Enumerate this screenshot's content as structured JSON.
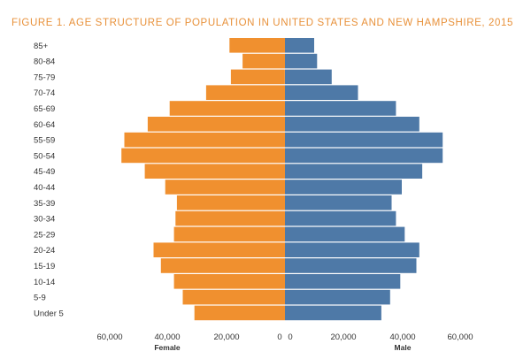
{
  "chart_data": {
    "type": "bar",
    "orientation": "horizontal-pyramid",
    "title": "FIGURE 1. AGE STRUCTURE OF POPULATION IN UNITED STATES AND NEW HAMPSHIRE, 2015",
    "categories": [
      "85+",
      "80-84",
      "75-79",
      "70-74",
      "65-69",
      "60-64",
      "55-59",
      "50-54",
      "45-49",
      "40-44",
      "35-39",
      "30-34",
      "25-29",
      "20-24",
      "15-19",
      "10-14",
      "5-9",
      "Under 5"
    ],
    "series": [
      {
        "name": "Female",
        "color": "#f0902f",
        "values": [
          19000,
          14500,
          18500,
          27000,
          39500,
          47000,
          55000,
          56000,
          48000,
          41000,
          37000,
          37500,
          38000,
          45000,
          42500,
          38000,
          35000,
          31000
        ]
      },
      {
        "name": "Male",
        "color": "#4e79a7",
        "values": [
          10000,
          11000,
          16000,
          25000,
          38000,
          46000,
          54000,
          54000,
          47000,
          40000,
          36500,
          38000,
          41000,
          46000,
          45000,
          39500,
          36000,
          33000
        ]
      }
    ],
    "x_ticks": [
      "60,000",
      "40,000",
      "20,000",
      "0",
      "0",
      "20,000",
      "40,000",
      "60,000"
    ],
    "x_max": 60000,
    "xlabel_left": "Female",
    "xlabel_right": "Male",
    "grid": false,
    "legend": "none"
  }
}
